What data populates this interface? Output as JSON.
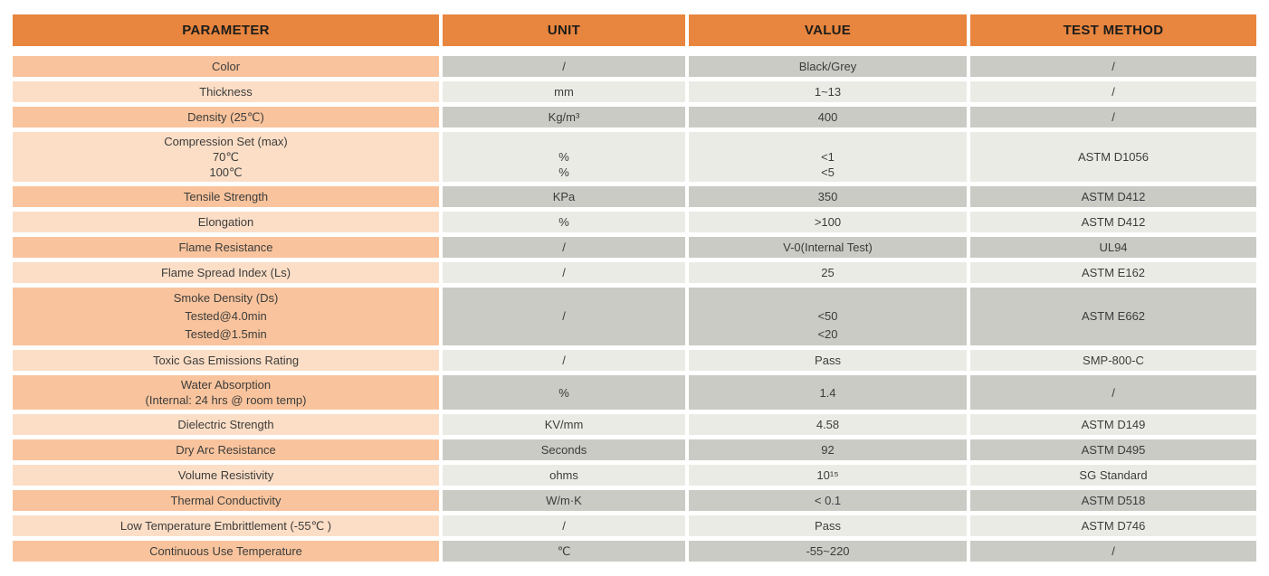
{
  "table": {
    "headers": [
      "PARAMETER",
      "UNIT",
      "VALUE",
      "TEST METHOD"
    ],
    "rows": [
      {
        "parameter": "Color",
        "unit": "/",
        "value": "Black/Grey",
        "test_method": "/"
      },
      {
        "parameter": "Thickness",
        "unit": "mm",
        "value": "1~13",
        "test_method": "/"
      },
      {
        "parameter": "Density (25℃)",
        "unit": "Kg/m³",
        "value": "400",
        "test_method": "/"
      },
      {
        "parameter": "Compression Set (max)\n70℃\n100℃",
        "unit": "\n%\n%",
        "value": "\n<1\n<5",
        "test_method": "ASTM D1056"
      },
      {
        "parameter": "Tensile Strength",
        "unit": "KPa",
        "value": "350",
        "test_method": "ASTM D412"
      },
      {
        "parameter": "Elongation",
        "unit": "%",
        "value": ">100",
        "test_method": "ASTM D412"
      },
      {
        "parameter": "Flame Resistance",
        "unit": "/",
        "value": "V-0(Internal Test)",
        "test_method": "UL94"
      },
      {
        "parameter": "Flame Spread Index (Ls)",
        "unit": "/",
        "value": "25",
        "test_method": "ASTM E162"
      },
      {
        "parameter": "Smoke Density (Ds)\nTested@4.0min\nTested@1.5min",
        "unit": "/",
        "value": "\n<50\n<20",
        "test_method": "ASTM E662"
      },
      {
        "parameter": "Toxic Gas Emissions Rating",
        "unit": "/",
        "value": "Pass",
        "test_method": "SMP-800-C"
      },
      {
        "parameter": "Water Absorption\n(Internal: 24 hrs @ room temp)",
        "unit": "%",
        "value": "1.4",
        "test_method": "/"
      },
      {
        "parameter": "Dielectric Strength",
        "unit": "KV/mm",
        "value": "4.58",
        "test_method": "ASTM D149"
      },
      {
        "parameter": "Dry Arc Resistance",
        "unit": "Seconds",
        "value": "92",
        "test_method": "ASTM D495"
      },
      {
        "parameter": "Volume Resistivity",
        "unit": "ohms",
        "value": "10¹⁵",
        "test_method": "SG Standard"
      },
      {
        "parameter": "Thermal Conductivity",
        "unit": "W/m·K",
        "value": "< 0.1",
        "test_method": "ASTM D518"
      },
      {
        "parameter": "Low Temperature Embrittlement (-55℃ )",
        "unit": "/",
        "value": "Pass",
        "test_method": "ASTM D746"
      },
      {
        "parameter": "Continuous Use Temperature",
        "unit": "℃",
        "value": "-55~220",
        "test_method": "/"
      }
    ]
  },
  "colors": {
    "orange": "#e8853e",
    "peach-dark": "#f9c49d",
    "peach-light": "#fcdec6",
    "grey-dark": "#cacbc5",
    "grey-light": "#ebebe6",
    "text": "#3c3c3b",
    "header-text": "#1d1d1b",
    "page-bg": "#ffffff"
  }
}
